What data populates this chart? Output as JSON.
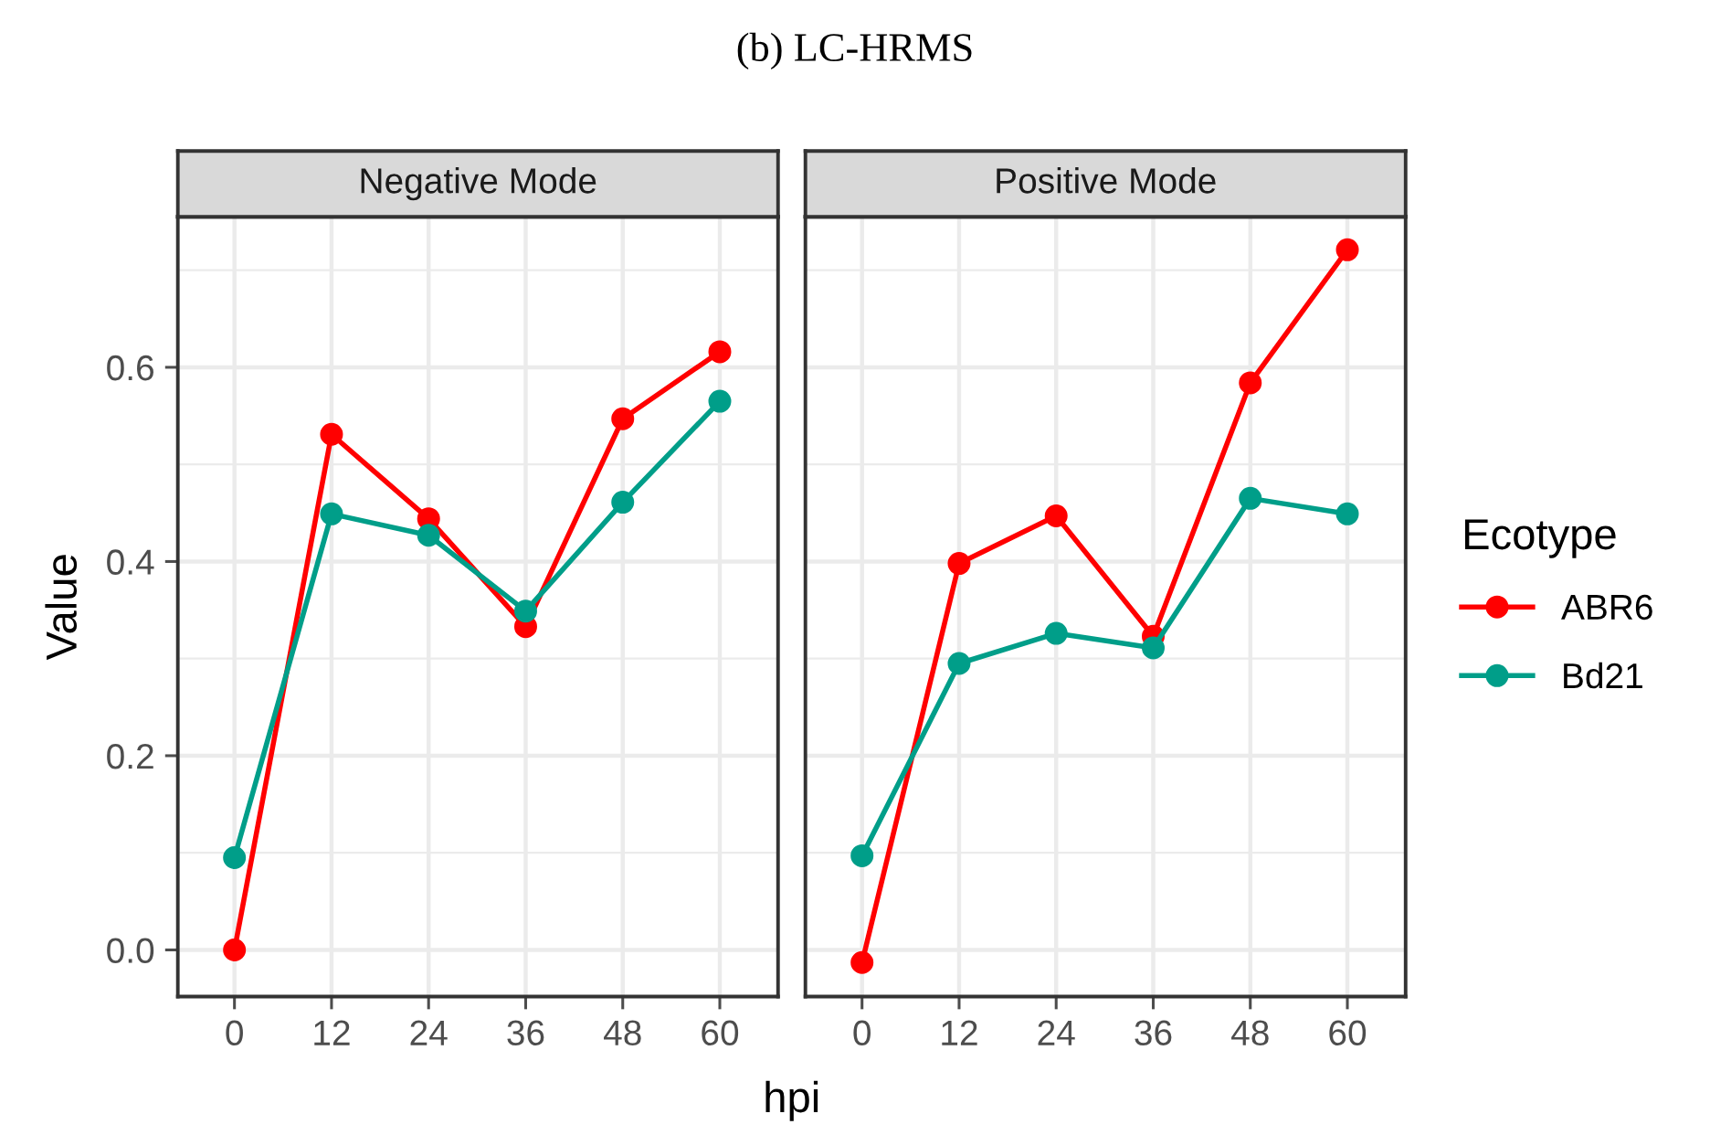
{
  "chart_data": [
    {
      "type": "line",
      "subtitle": "Negative Mode",
      "xlabel": "hpi",
      "ylabel": "Value",
      "x": [
        0,
        12,
        24,
        36,
        48,
        60
      ],
      "series": [
        {
          "color": "#ff0000",
          "values": [
            0.0,
            0.531,
            0.444,
            0.333,
            0.547,
            0.616
          ]
        },
        {
          "color": "#009e89",
          "values": [
            0.095,
            0.449,
            0.427,
            0.349,
            0.461,
            0.565
          ]
        }
      ],
      "xlim": [
        -7.0,
        67.2
      ],
      "xticks": [
        0,
        12,
        24,
        36,
        48,
        60
      ],
      "ylim": [
        -0.048,
        0.755
      ],
      "yticks": [
        {
          "value": 0.0,
          "label": "0.0"
        },
        0.2,
        0.4,
        0.6
      ],
      "grid": true,
      "marker": "circle",
      "line_style": "solid"
    },
    {
      "type": "line",
      "title": "(b) LC-HRMS",
      "subtitle": "Positive Mode",
      "legend_title": "Ecotype",
      "x": [
        0,
        12,
        24,
        36,
        48,
        60
      ],
      "series": [
        {
          "name": "ABR6",
          "color": "#ff0000",
          "values": [
            -0.013,
            0.398,
            0.447,
            0.323,
            0.584,
            0.721
          ]
        },
        {
          "name": "Bd21",
          "color": "#009e89",
          "values": [
            0.097,
            0.295,
            0.326,
            0.311,
            0.465,
            0.449
          ]
        }
      ],
      "xlim": [
        -7.0,
        67.2
      ],
      "xticks": [
        0,
        12,
        24,
        36,
        48,
        60
      ],
      "ylim": [
        -0.048,
        0.755
      ],
      "yticks": [
        0,
        0.2,
        0.4,
        0.6
      ],
      "tick_labels": "x",
      "grid": true,
      "marker": "circle",
      "line_style": "solid",
      "legend": "right"
    }
  ]
}
